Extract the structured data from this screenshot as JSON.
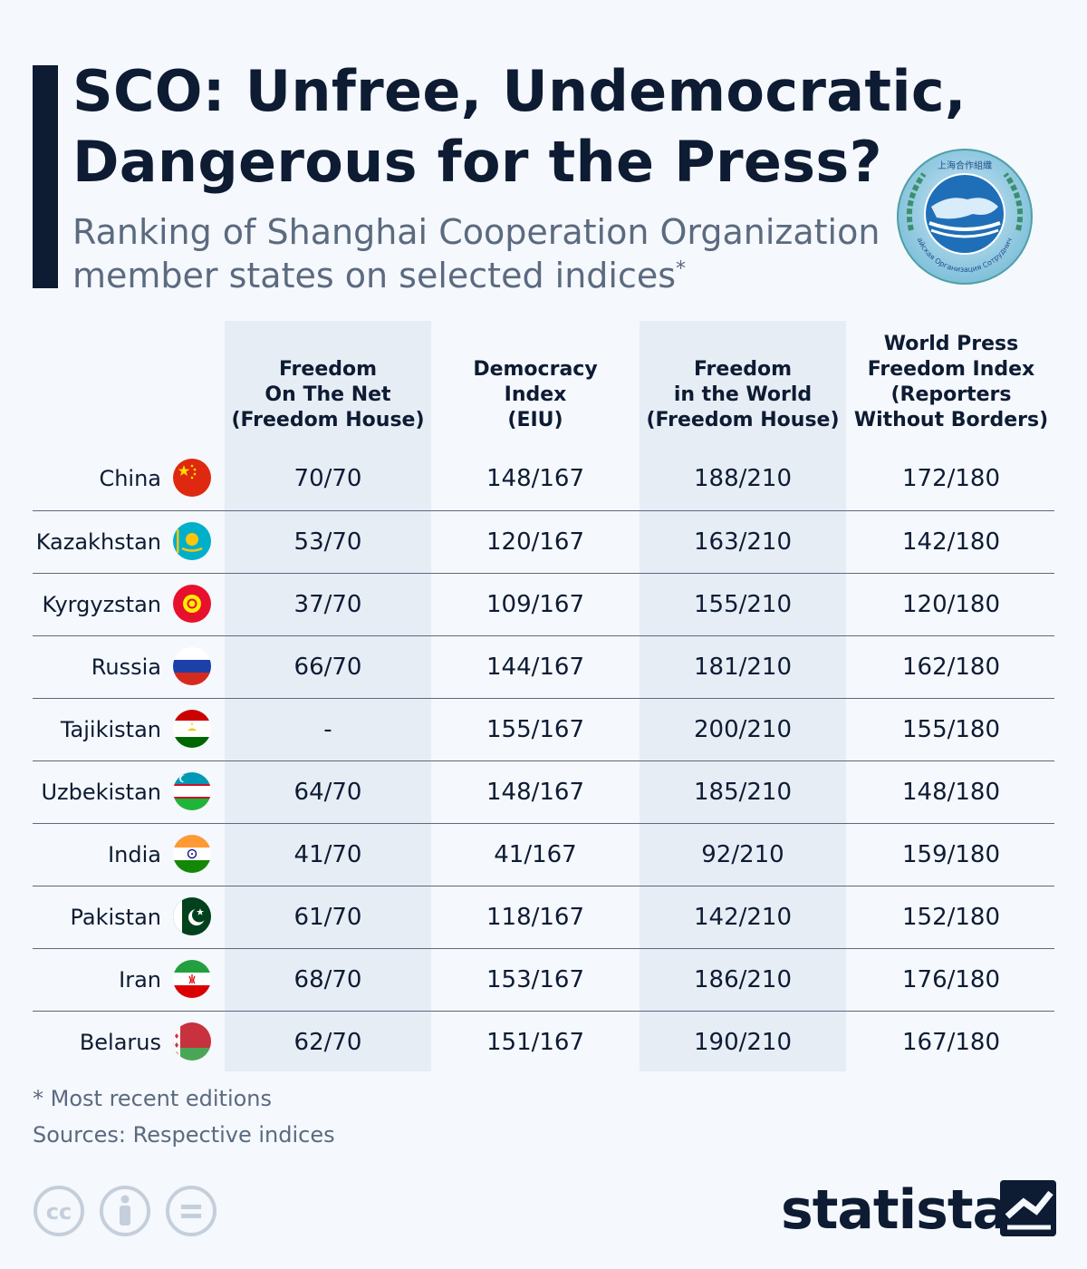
{
  "title_line1": "SCO: Unfree, Undemocratic,",
  "title_line2": "Dangerous for the Press?",
  "subtitle_line1": "Ranking of Shanghai Cooperation Organization",
  "subtitle_line2": "member states on selected indices",
  "subtitle_mark": "*",
  "logo_text": "上海合作組織",
  "logo_ring_text": "Шанхайская Организация Сотрудничества",
  "footnote": "* Most recent editions",
  "sources": "Sources: Respective indices",
  "brand": "statista",
  "colors": {
    "dark": "#0d1b33",
    "grey": "#5b6a7f",
    "band": "#e7edf5",
    "background": "#f5f8fc"
  },
  "chart_data": {
    "type": "table",
    "columns": [
      "Freedom\nOn The Net\n(Freedom House)",
      "Democracy\nIndex\n(EIU)",
      "Freedom\nin the World\n(Freedom House)",
      "World Press\nFreedom Index\n(Reporters\nWithout Borders)"
    ],
    "rows": [
      {
        "country": "China",
        "flag": "china-flag-icon",
        "values": [
          "70/70",
          "148/167",
          "188/210",
          "172/180"
        ]
      },
      {
        "country": "Kazakhstan",
        "flag": "kazakhstan-flag-icon",
        "values": [
          "53/70",
          "120/167",
          "163/210",
          "142/180"
        ]
      },
      {
        "country": "Kyrgyzstan",
        "flag": "kyrgyzstan-flag-icon",
        "values": [
          "37/70",
          "109/167",
          "155/210",
          "120/180"
        ]
      },
      {
        "country": "Russia",
        "flag": "russia-flag-icon",
        "values": [
          "66/70",
          "144/167",
          "181/210",
          "162/180"
        ]
      },
      {
        "country": "Tajikistan",
        "flag": "tajikistan-flag-icon",
        "values": [
          "-",
          "155/167",
          "200/210",
          "155/180"
        ]
      },
      {
        "country": "Uzbekistan",
        "flag": "uzbekistan-flag-icon",
        "values": [
          "64/70",
          "148/167",
          "185/210",
          "148/180"
        ]
      },
      {
        "country": "India",
        "flag": "india-flag-icon",
        "values": [
          "41/70",
          "41/167",
          "92/210",
          "159/180"
        ]
      },
      {
        "country": "Pakistan",
        "flag": "pakistan-flag-icon",
        "values": [
          "61/70",
          "118/167",
          "142/210",
          "152/180"
        ]
      },
      {
        "country": "Iran",
        "flag": "iran-flag-icon",
        "values": [
          "68/70",
          "153/167",
          "186/210",
          "176/180"
        ]
      },
      {
        "country": "Belarus",
        "flag": "belarus-flag-icon",
        "values": [
          "62/70",
          "151/167",
          "190/210",
          "167/180"
        ]
      }
    ]
  }
}
